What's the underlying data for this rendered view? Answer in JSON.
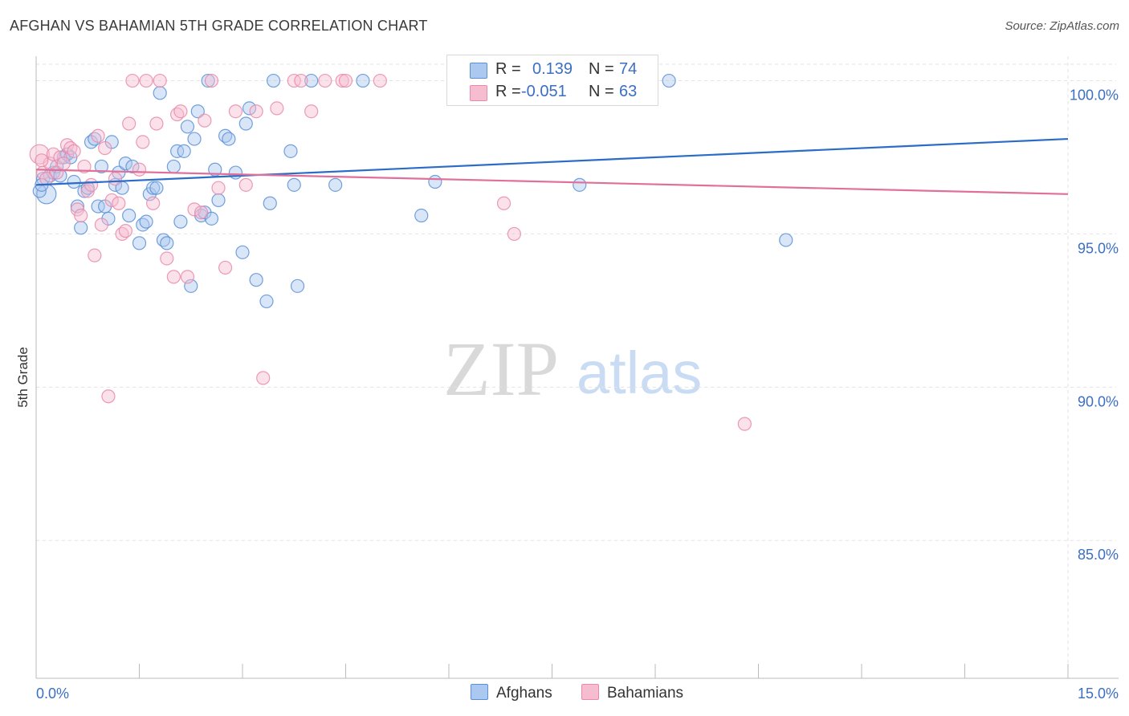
{
  "title": "AFGHAN VS BAHAMIAN 5TH GRADE CORRELATION CHART",
  "source": "Source: ZipAtlas.com",
  "watermark": {
    "zip": "ZIP",
    "atlas": "atlas"
  },
  "legend": {
    "afghans": {
      "r_label": "R =",
      "r_value": "0.139",
      "n_label": "N =",
      "n_value": "74"
    },
    "bahamians": {
      "r_label": "R =",
      "r_value": "-0.051",
      "n_label": "N =",
      "n_value": "63"
    }
  },
  "bottom_legend": {
    "afghans": "Afghans",
    "bahamians": "Bahamians"
  },
  "colors": {
    "afghans_fill": "#aac8f0",
    "afghans_stroke": "#5b8fd6",
    "afghans_line": "#2a6cc8",
    "bahamians_fill": "#f6bcd0",
    "bahamians_stroke": "#e88aaa",
    "bahamians_line": "#e0709a",
    "tick_label": "#3b6fc4",
    "grid": "#e2e2e2"
  },
  "chart_data": {
    "type": "scatter",
    "title": "AFGHAN VS BAHAMIAN 5TH GRADE CORRELATION CHART",
    "xlabel": "",
    "ylabel": "5th Grade",
    "xlim": [
      0.0,
      15.0
    ],
    "ylim": [
      80.5,
      100.8
    ],
    "x_tick_labels": [
      "0.0%",
      "15.0%"
    ],
    "y_ticks": [
      85.0,
      90.0,
      95.0,
      100.0
    ],
    "y_tick_labels": [
      "85.0%",
      "90.0%",
      "95.0%",
      "100.0%"
    ],
    "grid": true,
    "legend_position": "top-center",
    "series": [
      {
        "name": "Afghans",
        "trend": {
          "x": [
            0.0,
            15.0
          ],
          "y": [
            96.6,
            98.1
          ]
        },
        "points": [
          [
            0.1,
            96.8
          ],
          [
            0.15,
            96.3
          ],
          [
            0.2,
            96.9
          ],
          [
            0.25,
            97.0
          ],
          [
            0.3,
            97.2
          ],
          [
            0.35,
            96.9
          ],
          [
            0.4,
            97.5
          ],
          [
            0.45,
            97.6
          ],
          [
            0.5,
            97.5
          ],
          [
            0.55,
            96.7
          ],
          [
            0.6,
            95.9
          ],
          [
            0.65,
            95.2
          ],
          [
            0.7,
            96.4
          ],
          [
            0.75,
            96.5
          ],
          [
            0.8,
            98.0
          ],
          [
            0.85,
            98.1
          ],
          [
            0.9,
            95.9
          ],
          [
            0.95,
            97.2
          ],
          [
            1.0,
            95.9
          ],
          [
            1.05,
            95.5
          ],
          [
            1.1,
            98.0
          ],
          [
            1.15,
            96.6
          ],
          [
            1.2,
            97.0
          ],
          [
            1.25,
            96.5
          ],
          [
            1.3,
            97.3
          ],
          [
            1.35,
            95.6
          ],
          [
            1.4,
            97.2
          ],
          [
            1.5,
            94.7
          ],
          [
            1.55,
            95.3
          ],
          [
            1.6,
            95.4
          ],
          [
            1.65,
            96.3
          ],
          [
            1.7,
            96.5
          ],
          [
            1.75,
            96.5
          ],
          [
            1.8,
            99.6
          ],
          [
            1.85,
            94.8
          ],
          [
            1.9,
            94.7
          ],
          [
            2.0,
            97.2
          ],
          [
            2.05,
            97.7
          ],
          [
            2.1,
            95.4
          ],
          [
            2.15,
            97.7
          ],
          [
            2.2,
            98.5
          ],
          [
            2.25,
            93.3
          ],
          [
            2.3,
            98.1
          ],
          [
            2.35,
            99.0
          ],
          [
            2.4,
            95.6
          ],
          [
            2.45,
            95.7
          ],
          [
            2.5,
            100.0
          ],
          [
            2.55,
            95.5
          ],
          [
            2.6,
            97.1
          ],
          [
            2.65,
            96.1
          ],
          [
            2.75,
            98.2
          ],
          [
            2.8,
            98.1
          ],
          [
            2.9,
            97.0
          ],
          [
            3.0,
            94.4
          ],
          [
            3.05,
            98.6
          ],
          [
            3.1,
            99.1
          ],
          [
            3.2,
            93.5
          ],
          [
            3.35,
            92.8
          ],
          [
            3.4,
            96.0
          ],
          [
            3.45,
            100.0
          ],
          [
            3.7,
            97.7
          ],
          [
            3.75,
            96.6
          ],
          [
            3.8,
            93.3
          ],
          [
            4.0,
            100.0
          ],
          [
            4.35,
            96.6
          ],
          [
            4.75,
            100.0
          ],
          [
            5.6,
            95.6
          ],
          [
            5.8,
            96.7
          ],
          [
            6.8,
            100.0
          ],
          [
            7.9,
            96.6
          ],
          [
            9.2,
            100.0
          ],
          [
            10.9,
            94.8
          ],
          [
            0.05,
            96.4
          ],
          [
            0.08,
            96.6
          ]
        ]
      },
      {
        "name": "Bahamians",
        "trend": {
          "x": [
            0.0,
            15.0
          ],
          "y": [
            97.1,
            96.3
          ]
        },
        "points": [
          [
            0.05,
            97.6
          ],
          [
            0.1,
            97.0
          ],
          [
            0.15,
            96.8
          ],
          [
            0.2,
            97.3
          ],
          [
            0.25,
            97.6
          ],
          [
            0.3,
            97.0
          ],
          [
            0.35,
            97.5
          ],
          [
            0.4,
            97.3
          ],
          [
            0.45,
            97.9
          ],
          [
            0.5,
            97.8
          ],
          [
            0.55,
            97.7
          ],
          [
            0.6,
            95.8
          ],
          [
            0.65,
            95.6
          ],
          [
            0.7,
            97.2
          ],
          [
            0.75,
            96.4
          ],
          [
            0.8,
            96.6
          ],
          [
            0.85,
            94.3
          ],
          [
            0.9,
            98.2
          ],
          [
            0.95,
            95.3
          ],
          [
            1.0,
            97.8
          ],
          [
            1.05,
            89.7
          ],
          [
            1.1,
            96.1
          ],
          [
            1.15,
            96.8
          ],
          [
            1.2,
            96.0
          ],
          [
            1.25,
            95.0
          ],
          [
            1.3,
            95.1
          ],
          [
            1.35,
            98.6
          ],
          [
            1.4,
            100.0
          ],
          [
            1.5,
            97.1
          ],
          [
            1.55,
            98.0
          ],
          [
            1.6,
            100.0
          ],
          [
            1.7,
            96.0
          ],
          [
            1.75,
            98.6
          ],
          [
            1.8,
            100.0
          ],
          [
            1.9,
            94.2
          ],
          [
            2.0,
            93.6
          ],
          [
            2.05,
            98.9
          ],
          [
            2.1,
            99.0
          ],
          [
            2.2,
            93.6
          ],
          [
            2.3,
            95.8
          ],
          [
            2.4,
            95.7
          ],
          [
            2.45,
            98.7
          ],
          [
            2.55,
            100.0
          ],
          [
            2.65,
            96.5
          ],
          [
            2.75,
            93.9
          ],
          [
            2.9,
            99.0
          ],
          [
            3.05,
            96.6
          ],
          [
            3.2,
            99.0
          ],
          [
            3.3,
            90.3
          ],
          [
            3.5,
            99.1
          ],
          [
            3.75,
            100.0
          ],
          [
            3.85,
            100.0
          ],
          [
            4.0,
            99.0
          ],
          [
            4.2,
            100.0
          ],
          [
            4.45,
            100.0
          ],
          [
            4.5,
            100.0
          ],
          [
            5.0,
            100.0
          ],
          [
            6.55,
            100.0
          ],
          [
            6.8,
            96.0
          ],
          [
            6.95,
            95.0
          ],
          [
            7.3,
            100.0
          ],
          [
            10.3,
            88.8
          ],
          [
            0.08,
            97.4
          ]
        ]
      }
    ]
  }
}
